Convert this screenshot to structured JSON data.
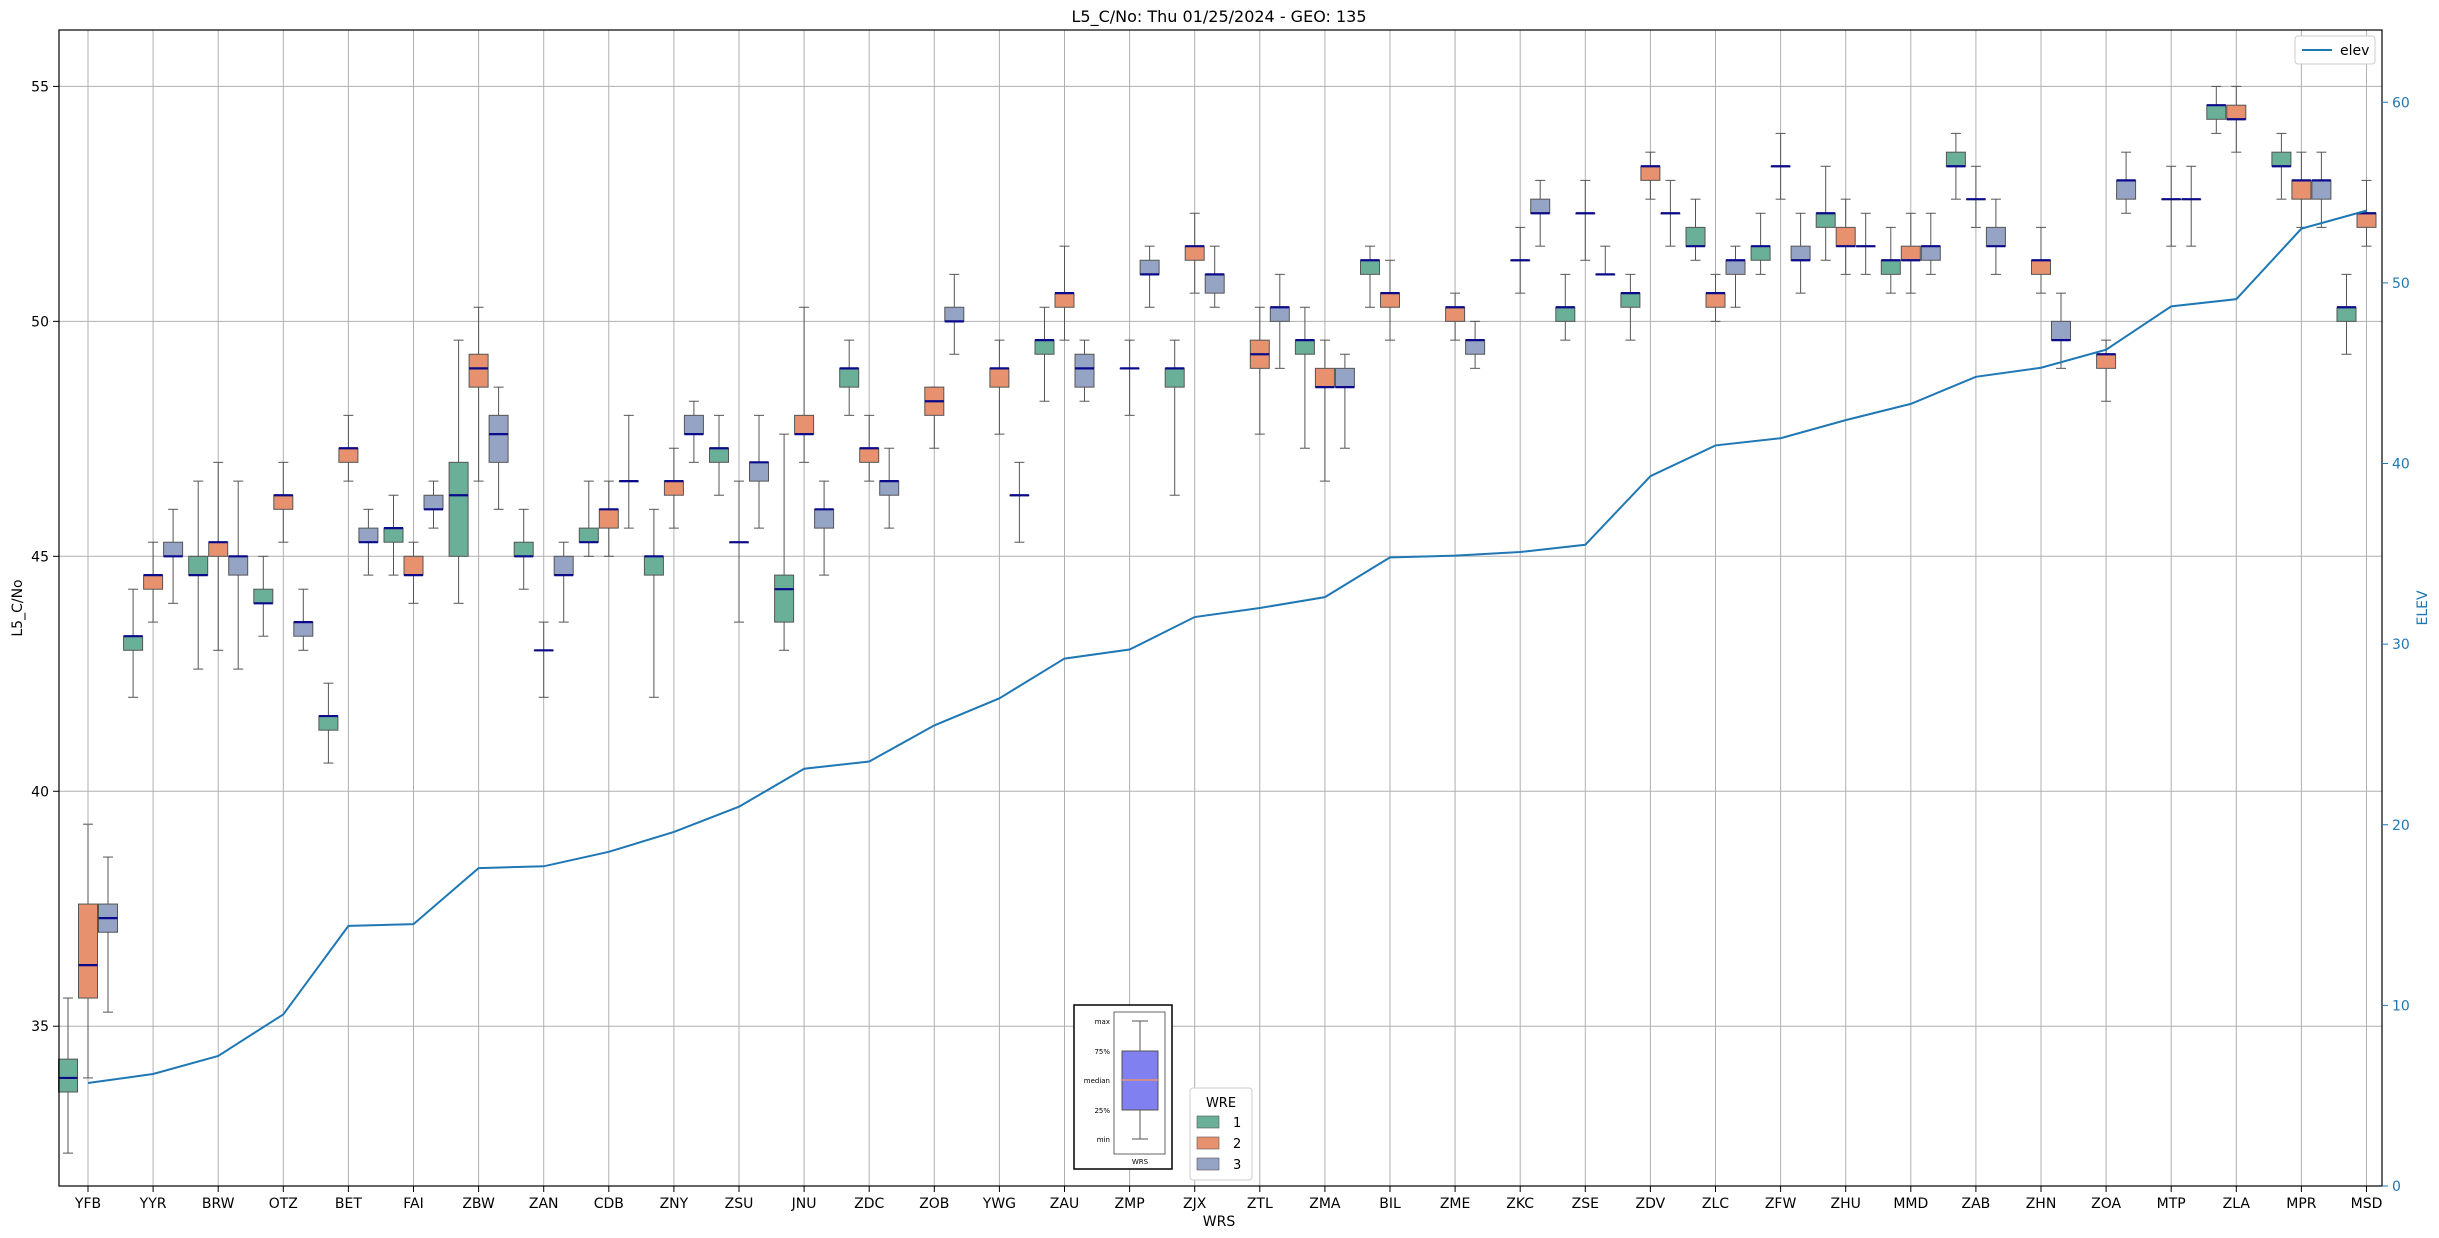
{
  "chart_data": {
    "type": "box",
    "title": "L5_C/No: Thu 01/25/2024 - GEO: 135",
    "xlabel": "WRS",
    "ylabel": "L5_C/No",
    "y2label": "ELEV",
    "ylim": [
      31.6,
      56.2
    ],
    "y2lim": [
      0,
      64
    ],
    "yticks": [
      35,
      40,
      45,
      50,
      55
    ],
    "y2ticks": [
      0,
      10,
      20,
      30,
      40,
      50,
      60
    ],
    "grid": true,
    "categories": [
      "YFB",
      "YYR",
      "BRW",
      "OTZ",
      "BET",
      "FAI",
      "ZBW",
      "ZAN",
      "CDB",
      "ZNY",
      "ZSU",
      "JNU",
      "ZDC",
      "ZOB",
      "YWG",
      "ZAU",
      "ZMP",
      "ZJX",
      "ZTL",
      "ZMA",
      "BIL",
      "ZME",
      "ZKC",
      "ZSE",
      "ZDV",
      "ZLC",
      "ZFW",
      "ZHU",
      "MMD",
      "ZAB",
      "ZHN",
      "ZOA",
      "MTP",
      "ZLA",
      "MPR",
      "MSD"
    ],
    "legend_title": "WRE",
    "legend_placement": "lower-center",
    "series": [
      {
        "name": "1",
        "color": "#6aaf98",
        "boxes": [
          [
            32.3,
            33.6,
            33.9,
            34.3,
            35.6
          ],
          [
            42,
            43,
            43.3,
            43.3,
            44.3
          ],
          [
            42.6,
            44.6,
            44.6,
            45,
            46.6
          ],
          [
            43.3,
            44,
            44,
            44.3,
            45
          ],
          [
            40.6,
            41.3,
            41.6,
            41.6,
            42.3
          ],
          [
            44.6,
            45.3,
            45.6,
            45.6,
            46.3
          ],
          [
            44,
            45,
            46.3,
            47,
            49.6
          ],
          [
            44.3,
            45,
            45,
            45.3,
            46
          ],
          [
            45,
            45.3,
            45.3,
            45.6,
            46.6
          ],
          [
            42,
            44.6,
            45,
            45,
            46
          ],
          [
            46.3,
            47,
            47.3,
            47.3,
            48
          ],
          [
            43,
            43.6,
            44.3,
            44.6,
            47.6
          ],
          [
            48,
            48.6,
            49,
            49,
            49.6
          ],
          null,
          null,
          [
            48.3,
            49.3,
            49.6,
            49.6,
            50.3
          ],
          null,
          [
            46.3,
            48.6,
            49,
            49,
            49.6
          ],
          null,
          [
            47.3,
            49.3,
            49.6,
            49.6,
            50.3
          ],
          [
            50.3,
            51,
            51.3,
            51.3,
            51.6
          ],
          null,
          null,
          [
            49.6,
            50,
            50.3,
            50.3,
            51
          ],
          [
            49.6,
            50.3,
            50.6,
            50.6,
            51
          ],
          [
            51.3,
            51.6,
            51.6,
            52,
            52.6
          ],
          [
            51,
            51.3,
            51.6,
            51.6,
            52.3
          ],
          [
            51.3,
            52,
            52.3,
            52.3,
            53.3
          ],
          [
            50.6,
            51,
            51.3,
            51.3,
            52
          ],
          [
            52.6,
            53.3,
            53.3,
            53.6,
            54
          ],
          null,
          null,
          null,
          [
            54,
            54.3,
            54.6,
            54.6,
            55
          ],
          [
            52.6,
            53.3,
            53.3,
            53.6,
            54
          ],
          [
            49.3,
            50,
            50.3,
            50.3,
            51
          ]
        ]
      },
      {
        "name": "2",
        "color": "#e8916e",
        "boxes": [
          [
            33.9,
            35.6,
            36.3,
            37.6,
            39.3
          ],
          [
            43.6,
            44.3,
            44.6,
            44.6,
            45.3
          ],
          [
            43,
            45,
            45.3,
            45.3,
            47
          ],
          [
            45.3,
            46,
            46.3,
            46.3,
            47
          ],
          [
            46.6,
            47,
            47.3,
            47.3,
            48
          ],
          [
            44,
            44.6,
            44.6,
            45,
            45.3
          ],
          [
            46.6,
            48.6,
            49,
            49.3,
            50.3
          ],
          [
            42,
            43,
            43,
            43,
            43.6
          ],
          [
            45,
            45.6,
            46,
            46,
            46.6
          ],
          [
            45.6,
            46.3,
            46.6,
            46.6,
            47.3
          ],
          [
            43.6,
            45.3,
            45.3,
            45.3,
            46.6
          ],
          [
            47,
            47.6,
            47.6,
            48,
            50.3
          ],
          [
            46.6,
            47,
            47.3,
            47.3,
            48
          ],
          [
            47.3,
            48,
            48.3,
            48.6,
            48.6
          ],
          [
            47.6,
            48.6,
            49,
            49,
            49.6
          ],
          [
            49.6,
            50.3,
            50.6,
            50.6,
            51.6
          ],
          [
            48,
            49,
            49,
            49,
            49.6
          ],
          [
            50.6,
            51.3,
            51.6,
            51.6,
            52.3
          ],
          [
            47.6,
            49,
            49.3,
            49.6,
            50.3
          ],
          [
            46.6,
            48.6,
            48.6,
            49,
            49.6
          ],
          [
            49.6,
            50.3,
            50.6,
            50.6,
            51.3
          ],
          [
            49.6,
            50,
            50.3,
            50.3,
            50.6
          ],
          [
            50.6,
            51.3,
            51.3,
            51.3,
            52
          ],
          [
            51.3,
            52.3,
            52.3,
            52.3,
            53
          ],
          [
            52.6,
            53,
            53.3,
            53.3,
            53.6
          ],
          [
            50,
            50.3,
            50.6,
            50.6,
            51
          ],
          [
            52.6,
            53.3,
            53.3,
            53.3,
            54
          ],
          [
            51,
            51.6,
            51.6,
            52,
            52.6
          ],
          [
            50.6,
            51.3,
            51.3,
            51.6,
            52.3
          ],
          [
            52,
            52.6,
            52.6,
            52.6,
            53.3
          ],
          [
            50.6,
            51,
            51.3,
            51.3,
            52
          ],
          [
            48.3,
            49,
            49.3,
            49.3,
            49.6
          ],
          [
            51.6,
            52.6,
            52.6,
            52.6,
            53.3
          ],
          [
            53.6,
            54.3,
            54.3,
            54.6,
            55
          ],
          [
            52,
            52.6,
            53,
            53,
            53.6
          ],
          [
            51.6,
            52,
            52.3,
            52.3,
            53
          ]
        ]
      },
      {
        "name": "3",
        "color": "#95a3c4",
        "boxes": [
          [
            35.3,
            37,
            37.3,
            37.6,
            38.6
          ],
          [
            44,
            45,
            45,
            45.3,
            46
          ],
          [
            42.6,
            44.6,
            45,
            45,
            46.6
          ],
          [
            43,
            43.3,
            43.6,
            43.6,
            44.3
          ],
          [
            44.6,
            45.3,
            45.3,
            45.6,
            46
          ],
          [
            45.6,
            46,
            46,
            46.3,
            46.6
          ],
          [
            46,
            47,
            47.6,
            48,
            48.6
          ],
          [
            43.6,
            44.6,
            44.6,
            45,
            45.3
          ],
          [
            45.6,
            46.6,
            46.6,
            46.6,
            48
          ],
          [
            47,
            47.6,
            47.6,
            48,
            48.3
          ],
          [
            45.6,
            46.6,
            47,
            47,
            48
          ],
          [
            44.6,
            45.6,
            46,
            46,
            46.6
          ],
          [
            45.6,
            46.3,
            46.6,
            46.6,
            47.3
          ],
          [
            49.3,
            50,
            50,
            50.3,
            51
          ],
          [
            45.3,
            46.3,
            46.3,
            46.3,
            47
          ],
          [
            48.3,
            48.6,
            49,
            49.3,
            49.6
          ],
          [
            50.3,
            51,
            51,
            51.3,
            51.6
          ],
          [
            50.3,
            50.6,
            51,
            51,
            51.6
          ],
          [
            49,
            50,
            50.3,
            50.3,
            51
          ],
          [
            47.3,
            48.6,
            48.6,
            49,
            49.3
          ],
          null,
          [
            49,
            49.3,
            49.6,
            49.6,
            50
          ],
          [
            51.6,
            52.3,
            52.3,
            52.6,
            53
          ],
          [
            51,
            51,
            51,
            51,
            51.6
          ],
          [
            51.6,
            52.3,
            52.3,
            52.3,
            53
          ],
          [
            50.3,
            51,
            51.3,
            51.3,
            51.6
          ],
          [
            50.6,
            51.3,
            51.3,
            51.6,
            52.3
          ],
          [
            51,
            51.6,
            51.6,
            51.6,
            52.3
          ],
          [
            51,
            51.3,
            51.6,
            51.6,
            52.3
          ],
          [
            51,
            51.6,
            51.6,
            52,
            52.6
          ],
          [
            49,
            49.6,
            49.6,
            50,
            50.6
          ],
          [
            52.3,
            52.6,
            53,
            53,
            53.6
          ],
          [
            51.6,
            52.6,
            52.6,
            52.6,
            53.3
          ],
          null,
          [
            52,
            52.6,
            53,
            53,
            53.6
          ],
          null
        ]
      }
    ],
    "elev_line": {
      "name": "elev",
      "color": "#1f77b4",
      "values": [
        5.7,
        6.2,
        7.2,
        9.5,
        14.4,
        14.5,
        17.6,
        17.7,
        18.5,
        19.6,
        21.0,
        23.1,
        23.5,
        25.5,
        27.0,
        29.2,
        29.7,
        31.5,
        32.0,
        32.6,
        34.8,
        34.9,
        35.1,
        35.5,
        39.3,
        41.0,
        41.4,
        42.4,
        43.3,
        44.8,
        45.3,
        46.3,
        48.7,
        49.1,
        53.0,
        54.0
      ]
    },
    "elev_legend_placement": "upper-right",
    "inset": {
      "labels": [
        "max",
        "75%",
        "median",
        "25%",
        "min"
      ],
      "xlabel": "WRS"
    }
  }
}
